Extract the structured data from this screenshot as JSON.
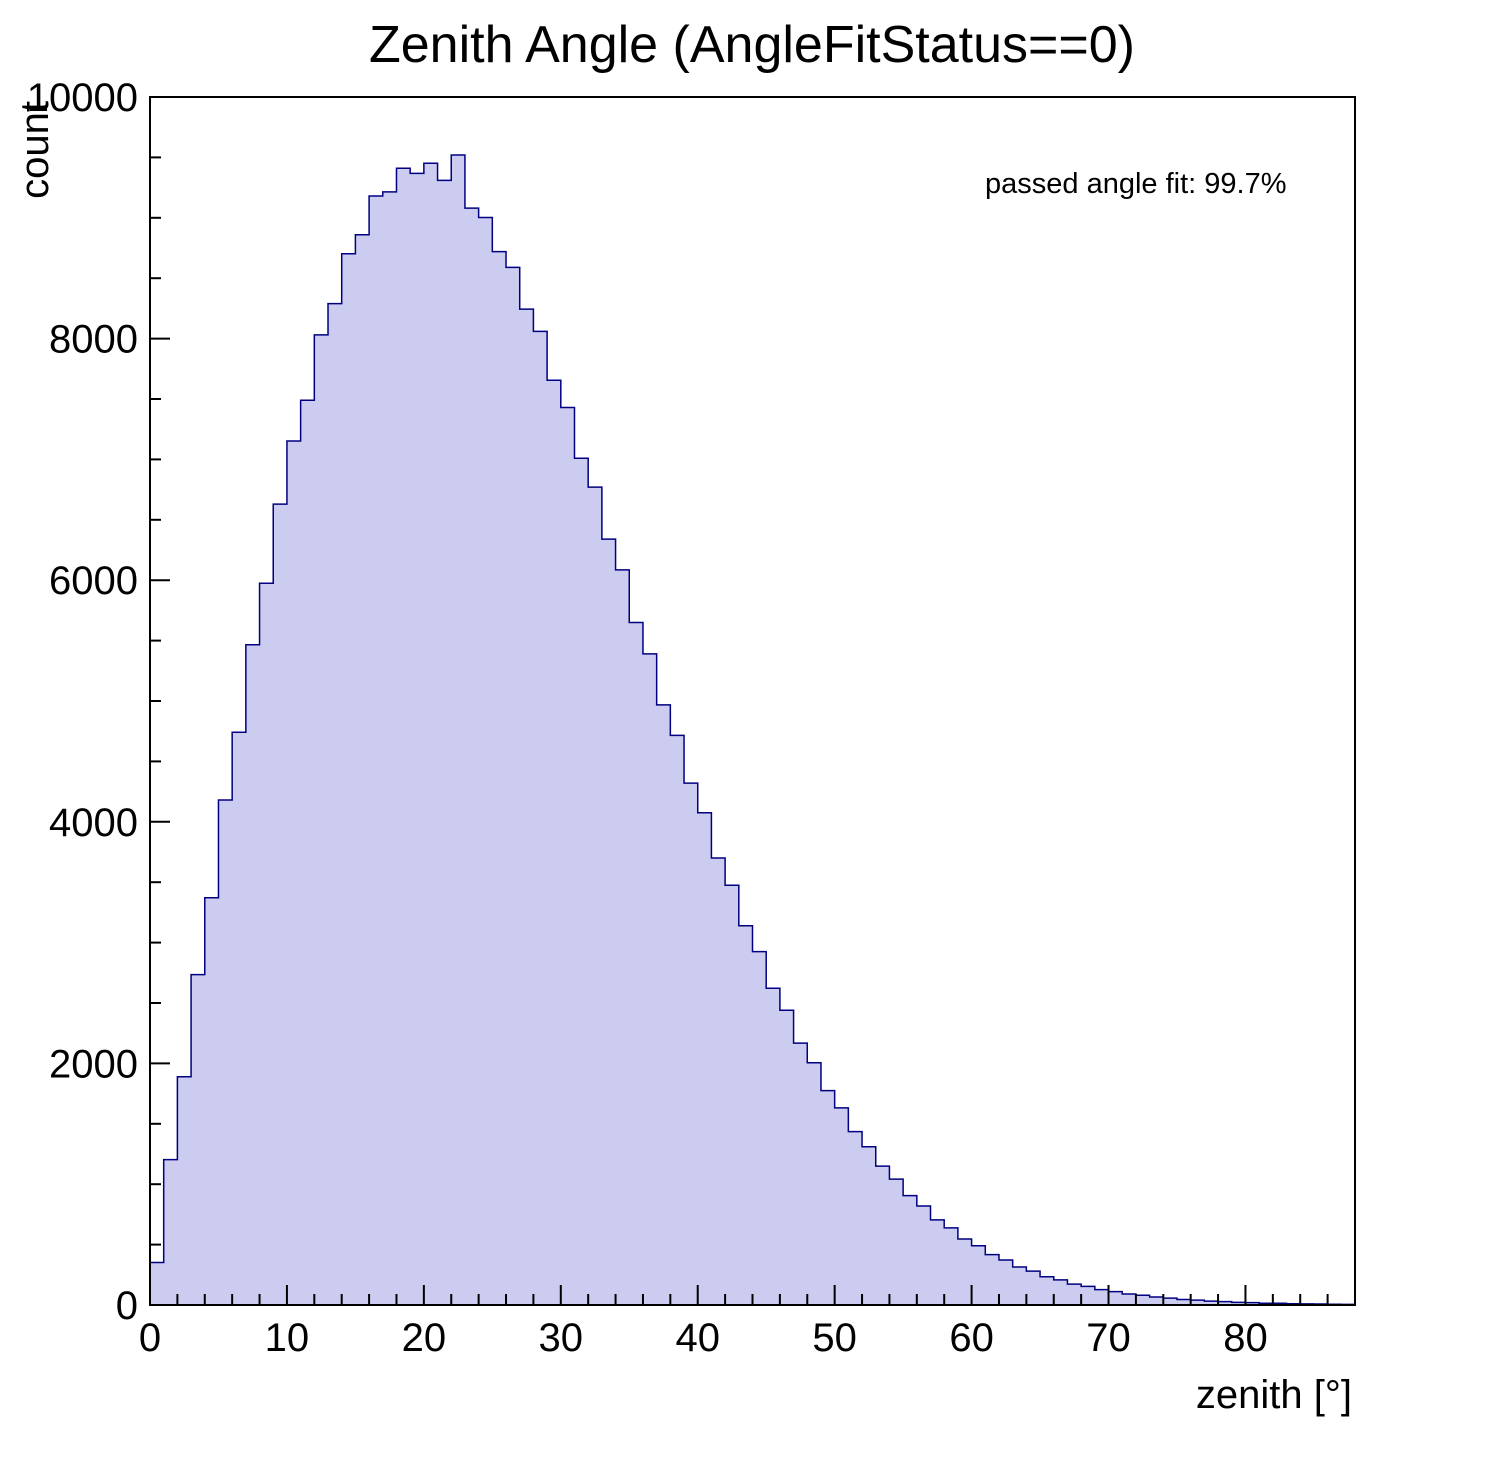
{
  "title": "Zenith Angle (AngleFitStatus==0)",
  "annotation": "passed angle fit: 99.7%",
  "colors": {
    "histogram_fill": "#ccccf0",
    "histogram_line": "#000080",
    "frame": "#000000",
    "background": "#ffffff"
  },
  "chart_data": {
    "type": "bar",
    "subtype": "histogram",
    "title": "Zenith Angle (AngleFitStatus==0)",
    "xlabel": "zenith [°]",
    "ylabel": "count",
    "annotation": "passed angle fit: 99.7%",
    "xlim": [
      0,
      88
    ],
    "ylim": [
      0,
      10000
    ],
    "x_ticks": [
      0,
      10,
      20,
      30,
      40,
      50,
      60,
      70,
      80
    ],
    "y_ticks": [
      0,
      2000,
      4000,
      6000,
      8000,
      10000
    ],
    "x_minor_step": 2,
    "y_minor_step": 500,
    "bin_start": 0,
    "bin_width": 1,
    "grid": false,
    "legend_position": "none",
    "values": [
      352,
      1203,
      1890,
      2735,
      3371,
      4180,
      4741,
      5466,
      5975,
      6630,
      7152,
      7490,
      8031,
      8290,
      8702,
      8860,
      9180,
      9215,
      9410,
      9368,
      9452,
      9310,
      9520,
      9080,
      9002,
      8720,
      8590,
      8244,
      8060,
      7655,
      7430,
      7010,
      6770,
      6340,
      6085,
      5650,
      5390,
      4968,
      4715,
      4320,
      4075,
      3700,
      3475,
      3140,
      2925,
      2622,
      2440,
      2168,
      2005,
      1775,
      1632,
      1435,
      1310,
      1150,
      1042,
      905,
      820,
      705,
      638,
      546,
      490,
      417,
      372,
      315,
      280,
      234,
      208,
      173,
      154,
      127,
      111,
      91,
      81,
      66,
      57,
      46,
      40,
      32,
      28,
      22,
      20,
      15,
      14,
      10,
      9,
      8,
      6,
      5
    ]
  }
}
